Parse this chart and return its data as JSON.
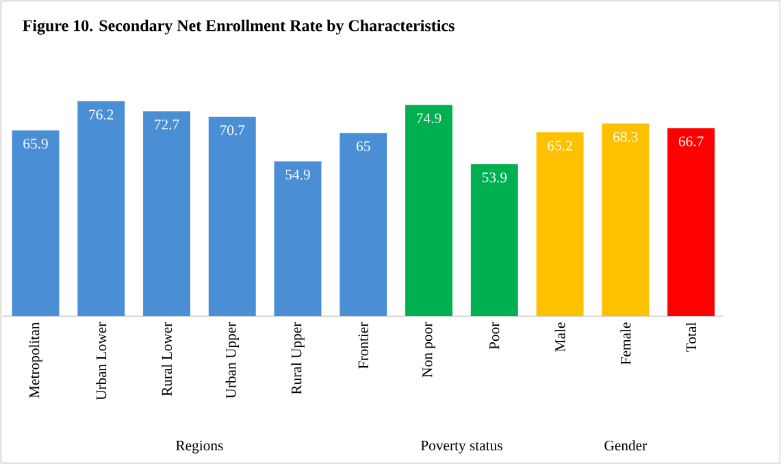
{
  "chart_data": {
    "type": "bar",
    "title": "Figure 10. Secondary Net Enrollment Rate by Characteristics",
    "categories": [
      "Metropolitan",
      "Urban Lower",
      "Rural Lower",
      "Urban Upper",
      "Rural Upper",
      "Frontier",
      "Non poor",
      "Poor",
      "Male",
      "Female",
      "Total"
    ],
    "values": [
      65.9,
      76.2,
      72.7,
      70.7,
      54.9,
      65,
      74.9,
      53.9,
      65.2,
      68.3,
      66.7
    ],
    "colors": [
      "#4a8fd6",
      "#4a8fd6",
      "#4a8fd6",
      "#4a8fd6",
      "#4a8fd6",
      "#4a8fd6",
      "#00b050",
      "#00b050",
      "#ffc000",
      "#ffc000",
      "#ff0000"
    ],
    "data_labels": true,
    "annotations": [
      "Regions",
      "Poverty status",
      "Gender"
    ]
  }
}
